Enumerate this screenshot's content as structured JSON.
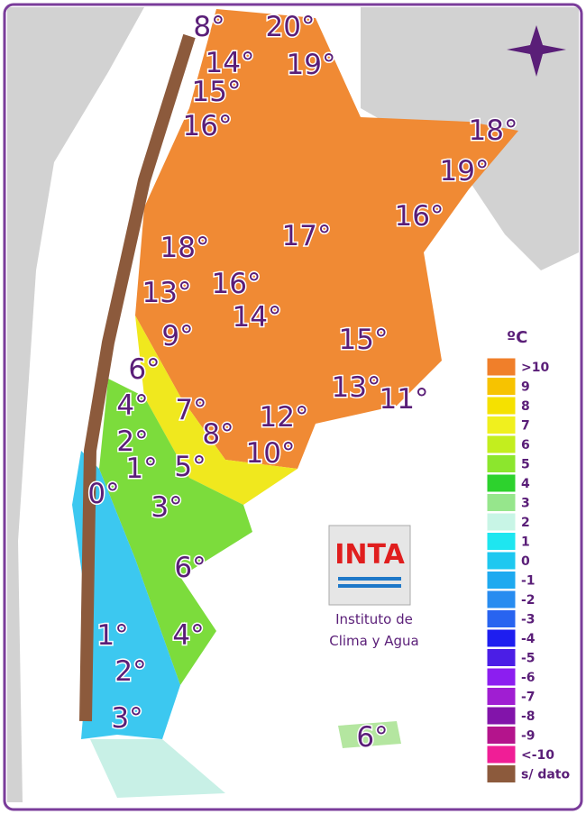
{
  "map": {
    "temperature_labels": [
      "8°",
      "20°",
      "14°",
      "19°",
      "15°",
      "16°",
      "18°",
      "19°",
      "16°",
      "17°",
      "18°",
      "16°",
      "13°",
      "14°",
      "15°",
      "9°",
      "6°",
      "13°",
      "11°",
      "4°",
      "7°",
      "12°",
      "8°",
      "2°",
      "10°",
      "1°",
      "5°",
      "0°",
      "3°",
      "6°",
      "1°",
      "4°",
      "2°",
      "3°",
      "6°"
    ],
    "legend": {
      "title": "ºC",
      "items": [
        {
          "label": ">10",
          "color": "#f07f2a"
        },
        {
          "label": "9",
          "color": "#f7c300"
        },
        {
          "label": "8",
          "color": "#f5e100"
        },
        {
          "label": "7",
          "color": "#f0f01e"
        },
        {
          "label": "6",
          "color": "#c3ee1e"
        },
        {
          "label": "5",
          "color": "#8ce62d"
        },
        {
          "label": "4",
          "color": "#2dd22d"
        },
        {
          "label": "3",
          "color": "#96e68c"
        },
        {
          "label": "2",
          "color": "#c8f5e6"
        },
        {
          "label": "1",
          "color": "#1ee6f0"
        },
        {
          "label": "0",
          "color": "#1ec8f0"
        },
        {
          "label": "-1",
          "color": "#1eaaf0"
        },
        {
          "label": "-2",
          "color": "#288cf0"
        },
        {
          "label": "-3",
          "color": "#2864f0"
        },
        {
          "label": "-4",
          "color": "#1e1ef0"
        },
        {
          "label": "-5",
          "color": "#4b1ee6"
        },
        {
          "label": "-6",
          "color": "#8c1ef0"
        },
        {
          "label": "-7",
          "color": "#a01ed2"
        },
        {
          "label": "-8",
          "color": "#8214aa"
        },
        {
          "label": "-9",
          "color": "#b4148c"
        },
        {
          "label": "<-10",
          "color": "#f01e96"
        },
        {
          "label": "s/ dato",
          "color": "#8c5a3c"
        }
      ]
    },
    "logo": {
      "name": "INTA",
      "line1": "Instituto de",
      "line2": "Clima y Agua"
    }
  }
}
